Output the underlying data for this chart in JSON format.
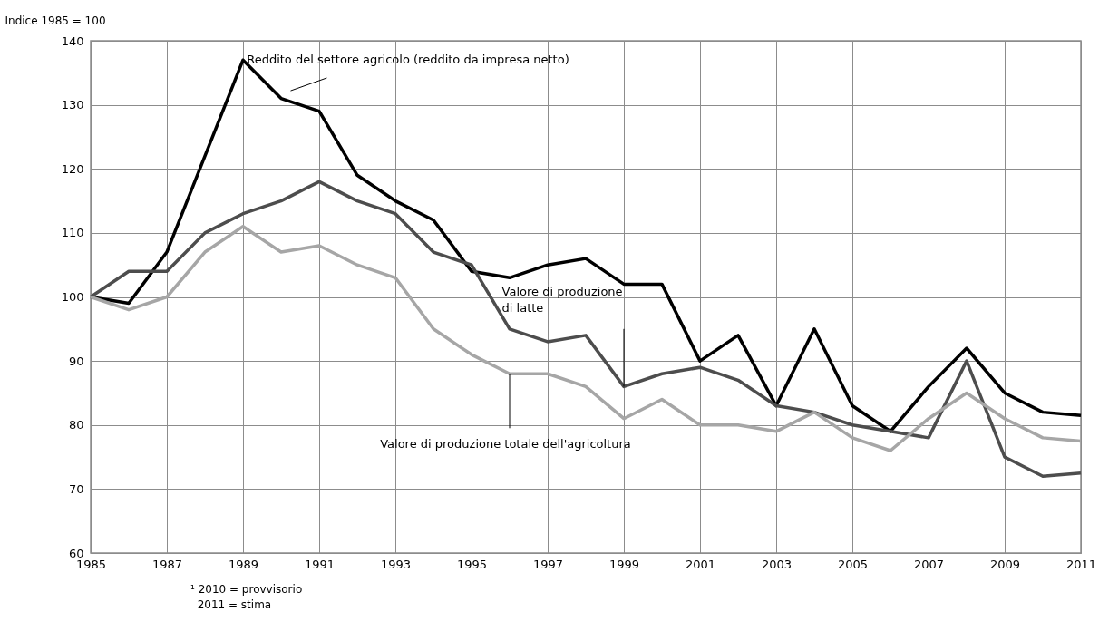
{
  "chart_data": {
    "type": "line",
    "ylabel": "Indice 1985 = 100",
    "x": [
      1985,
      1986,
      1987,
      1988,
      1989,
      1990,
      1991,
      1992,
      1993,
      1994,
      1995,
      1996,
      1997,
      1998,
      1999,
      2000,
      2001,
      2002,
      2003,
      2004,
      2005,
      2006,
      2007,
      2008,
      2009,
      2010,
      2011
    ],
    "series": [
      {
        "color": "#000000",
        "values": [
          100,
          99,
          107,
          122,
          137,
          131,
          129,
          119,
          115,
          112,
          104,
          103,
          105,
          106,
          102,
          102,
          90,
          94,
          83,
          95,
          83,
          79,
          86,
          92,
          85,
          82,
          81.5
        ]
      },
      {
        "color": "#4d4d4d",
        "values": [
          100,
          104,
          104,
          110,
          113,
          115,
          118,
          115,
          113,
          107,
          105,
          95,
          93,
          94,
          86,
          88,
          89,
          87,
          83,
          82,
          80,
          79,
          78,
          90,
          75,
          72,
          72.5
        ]
      },
      {
        "color": "#a6a6a6",
        "values": [
          100,
          98,
          100,
          107,
          111,
          107,
          108,
          105,
          103,
          95,
          91,
          88,
          88,
          86,
          81,
          84,
          80,
          80,
          79,
          82,
          78,
          76,
          81,
          85,
          81,
          78,
          77.5
        ]
      }
    ],
    "xlim": [
      1985,
      2011
    ],
    "xticks": [
      1985,
      1987,
      1989,
      1991,
      1993,
      1995,
      1997,
      1999,
      2001,
      2003,
      2005,
      2007,
      2009,
      2011
    ],
    "ylim": [
      60,
      140
    ],
    "yticks": [
      60,
      70,
      80,
      90,
      100,
      110,
      120,
      130,
      140
    ],
    "grid": true,
    "line_style": "solid",
    "marker": "none",
    "legend": false,
    "annotations": [
      {
        "text": "Reddito del settore agricolo (reddito da impresa netto)",
        "x": 1990,
        "y": 131
      },
      {
        "text": "Valore di produzione\n di latte",
        "x": 1999,
        "y": 86
      },
      {
        "text": "Valore di produzione totale dell'agricoltura",
        "x": 1996,
        "y": 88
      },
      "¹ 2010 = provvisorio",
      "  2011 = stima"
    ]
  }
}
